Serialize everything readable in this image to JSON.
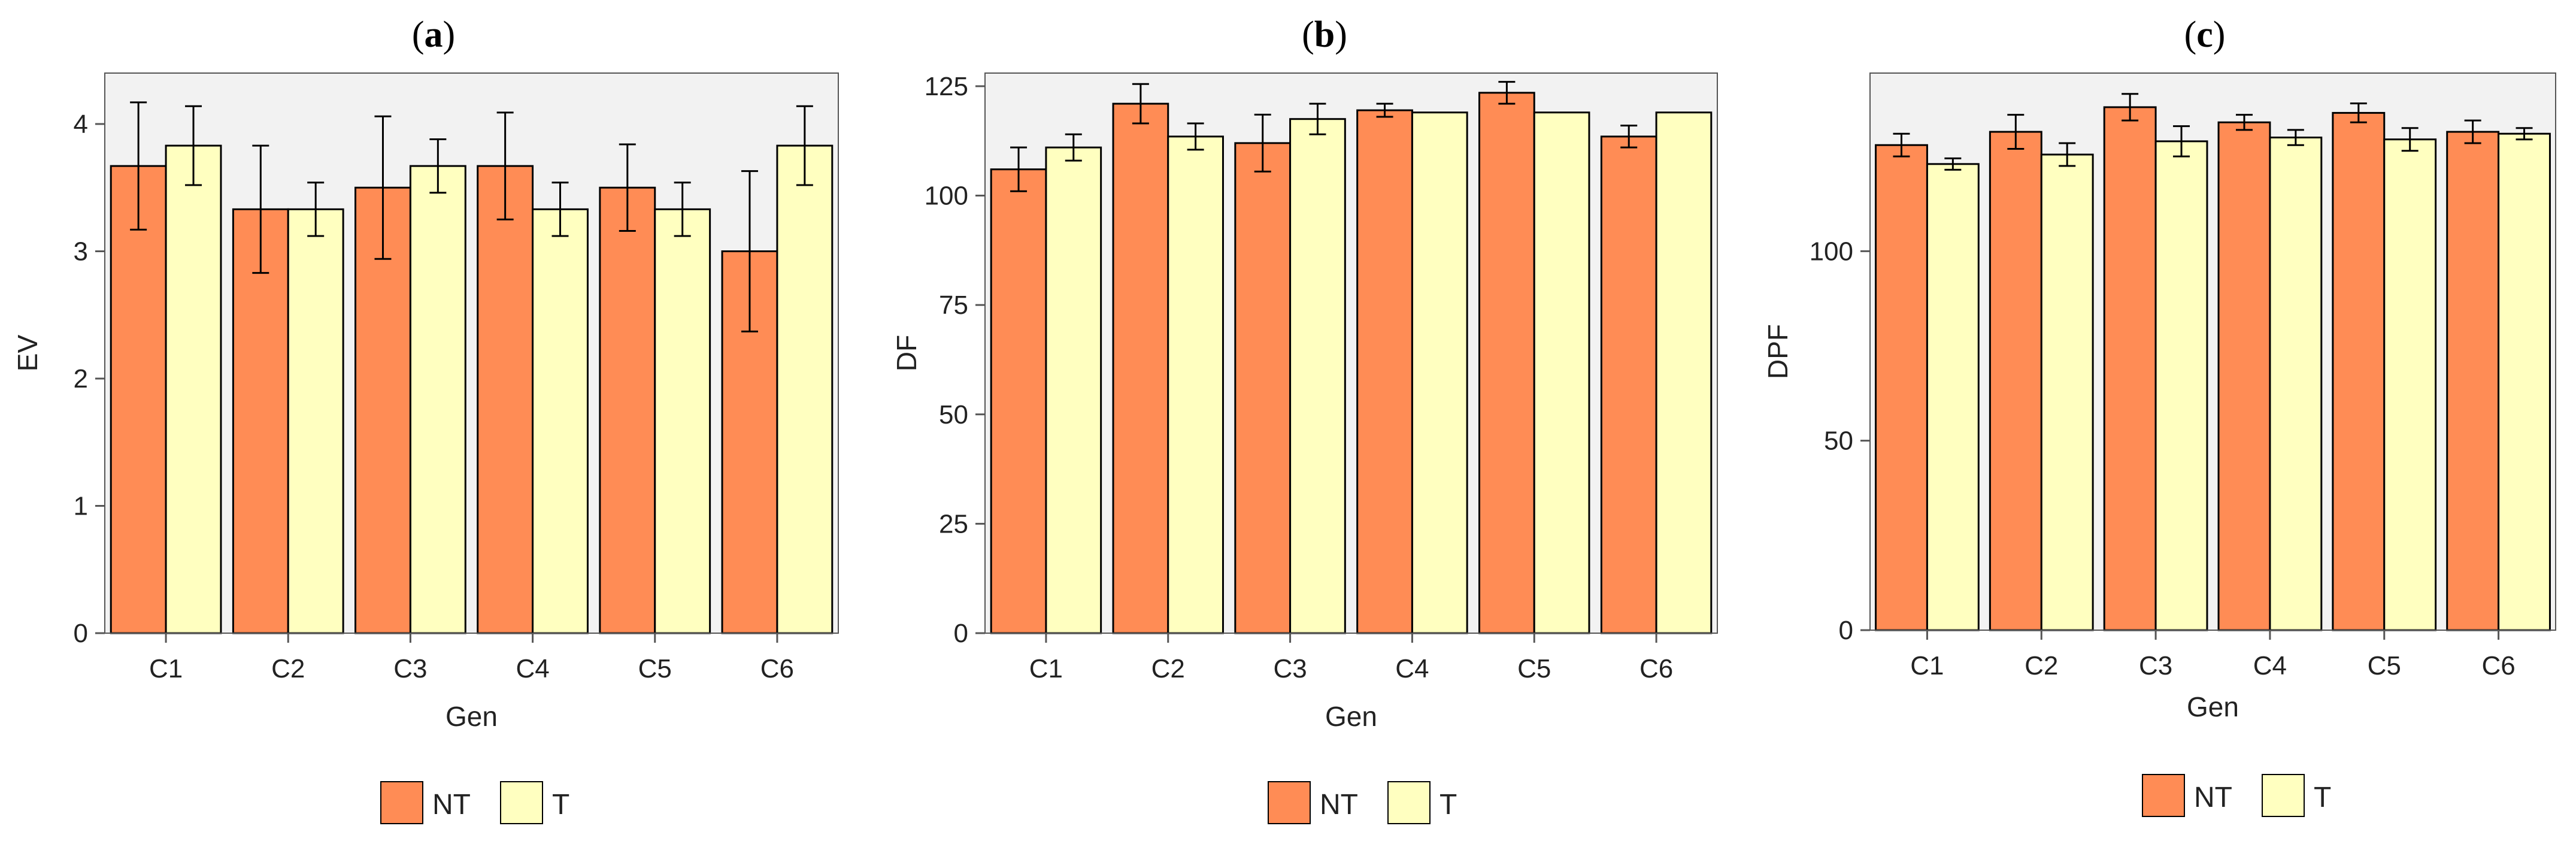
{
  "legend": {
    "position": "bottom",
    "entries": [
      {
        "key": "NT",
        "label": "NT",
        "color": "#FF8C55"
      },
      {
        "key": "T",
        "label": "T",
        "color": "#FFFFC0"
      }
    ]
  },
  "style": {
    "panel_background": "#F2F2F2",
    "bar_border": "#000000",
    "axis_color": "#555555"
  },
  "chart_data": [
    {
      "type": "bar",
      "panel_label": "a",
      "xlabel": "Gen",
      "ylabel": "EV",
      "categories": [
        "C1",
        "C2",
        "C3",
        "C4",
        "C5",
        "C6"
      ],
      "ylim": [
        0,
        4.4
      ],
      "yticks": [
        0,
        1,
        2,
        3,
        4
      ],
      "grid": false,
      "series": [
        {
          "name": "NT",
          "values": [
            3.67,
            3.33,
            3.5,
            3.67,
            3.5,
            3.0
          ],
          "error": [
            0.5,
            0.5,
            0.56,
            0.42,
            0.34,
            0.63
          ]
        },
        {
          "name": "T",
          "values": [
            3.83,
            3.33,
            3.67,
            3.33,
            3.33,
            3.83
          ],
          "error": [
            0.31,
            0.21,
            0.21,
            0.21,
            0.21,
            0.31
          ]
        }
      ]
    },
    {
      "type": "bar",
      "panel_label": "b",
      "xlabel": "Gen",
      "ylabel": "DF",
      "categories": [
        "C1",
        "C2",
        "C3",
        "C4",
        "C5",
        "C6"
      ],
      "ylim": [
        0,
        128
      ],
      "yticks": [
        0,
        25,
        50,
        75,
        100,
        125
      ],
      "grid": false,
      "series": [
        {
          "name": "NT",
          "values": [
            106,
            121,
            112,
            119.5,
            123.5,
            113.5
          ],
          "error": [
            5,
            4.5,
            6.5,
            1.5,
            2.5,
            2.5
          ]
        },
        {
          "name": "T",
          "values": [
            111,
            113.5,
            117.5,
            119,
            119,
            119
          ],
          "error": [
            3,
            3,
            3.5,
            0,
            0,
            0
          ]
        }
      ]
    },
    {
      "type": "bar",
      "panel_label": "c",
      "xlabel": "Gen",
      "ylabel": "DPF",
      "categories": [
        "C1",
        "C2",
        "C3",
        "C4",
        "C5",
        "C6"
      ],
      "ylim": [
        0,
        147
      ],
      "yticks": [
        0,
        50,
        100
      ],
      "grid": false,
      "series": [
        {
          "name": "NT",
          "values": [
            128,
            131.5,
            138,
            134,
            136.5,
            131.5
          ],
          "error": [
            3,
            4.5,
            3.5,
            2,
            2.5,
            3
          ]
        },
        {
          "name": "T",
          "values": [
            123,
            125.5,
            129,
            130,
            129.5,
            131
          ],
          "error": [
            1.5,
            3,
            4,
            2,
            3,
            1.5
          ]
        }
      ]
    }
  ]
}
